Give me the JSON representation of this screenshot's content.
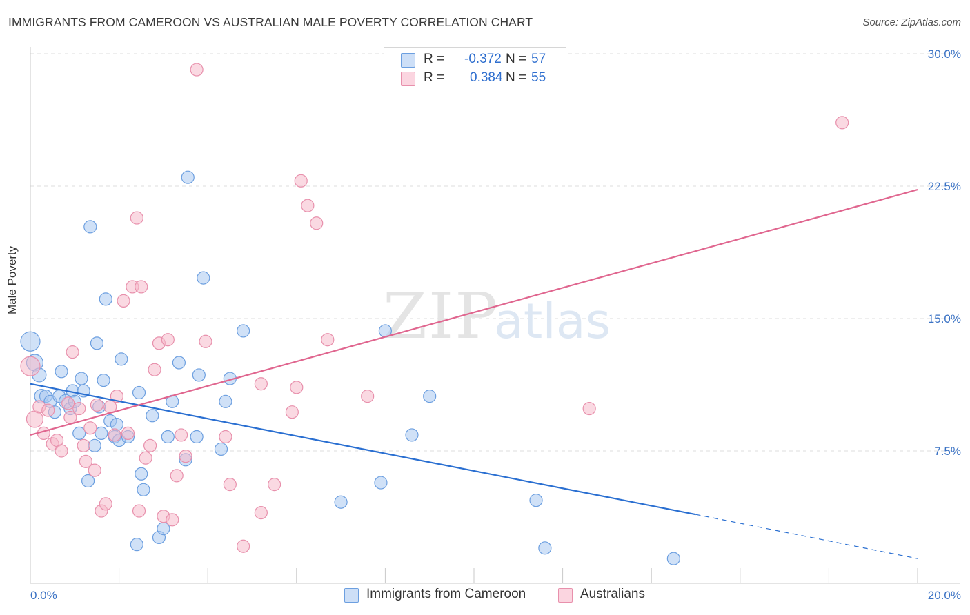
{
  "header": {
    "title": "IMMIGRANTS FROM CAMEROON VS AUSTRALIAN MALE POVERTY CORRELATION CHART",
    "source": "Source: ZipAtlas.com"
  },
  "watermark": {
    "zip": "ZIP",
    "atlas": "atlas"
  },
  "legend": {
    "r_label": "R =",
    "n_label": "N =",
    "rows": [
      {
        "r": "-0.372",
        "n": "57",
        "color": "#a9c8f0"
      },
      {
        "r": "0.384",
        "n": "55",
        "color": "#f5b9cb"
      }
    ]
  },
  "colors": {
    "blue_fill": "#a9c8f0",
    "blue_stroke": "#6c9fe0",
    "blue_line": "#2a6fd1",
    "pink_fill": "#f5b9cb",
    "pink_stroke": "#e890ac",
    "pink_line": "#e0668f",
    "tick_text": "#3a72c4",
    "grid": "#dddddd"
  },
  "chart_data": {
    "type": "scatter",
    "title": "IMMIGRANTS FROM CAMEROON VS AUSTRALIAN MALE POVERTY CORRELATION CHART",
    "xlabel": "",
    "ylabel": "Male Poverty",
    "xlim": [
      0,
      20
    ],
    "ylim": [
      0,
      30
    ],
    "x_tick_labels": [
      "0.0%",
      "20.0%"
    ],
    "y_ticks": [
      7.5,
      15.0,
      22.5,
      30.0
    ],
    "y_tick_labels": [
      "7.5%",
      "15.0%",
      "22.5%",
      "30.0%"
    ],
    "grid": true,
    "legend_position": "top-center",
    "series": [
      {
        "name": "Immigrants from Cameroon",
        "color": "#a9c8f0",
        "r": -0.372,
        "n": 57,
        "trend": {
          "x0": 0.0,
          "y0": 11.3,
          "x1": 15.0,
          "y1": 3.9,
          "dashed_to_x": 20.0,
          "dashed_to_y": 1.4
        },
        "points": [
          [
            0.0,
            13.7,
            14
          ],
          [
            0.1,
            12.5,
            12
          ],
          [
            0.2,
            11.8,
            10
          ],
          [
            0.25,
            10.6,
            10
          ],
          [
            0.35,
            10.6,
            9
          ],
          [
            0.45,
            10.3,
            9
          ],
          [
            0.55,
            9.7,
            9
          ],
          [
            0.65,
            10.6,
            9
          ],
          [
            0.7,
            12.0,
            9
          ],
          [
            0.8,
            10.3,
            10
          ],
          [
            0.9,
            9.9,
            9
          ],
          [
            0.95,
            10.9,
            9
          ],
          [
            1.0,
            10.3,
            9
          ],
          [
            1.1,
            8.5,
            9
          ],
          [
            1.15,
            11.6,
            9
          ],
          [
            1.2,
            10.9,
            9
          ],
          [
            1.3,
            5.8,
            9
          ],
          [
            1.35,
            20.2,
            9
          ],
          [
            1.45,
            7.8,
            9
          ],
          [
            1.5,
            13.6,
            9
          ],
          [
            1.55,
            10.0,
            9
          ],
          [
            1.65,
            11.5,
            9
          ],
          [
            1.7,
            16.1,
            9
          ],
          [
            1.8,
            9.2,
            9
          ],
          [
            1.9,
            8.3,
            9
          ],
          [
            1.95,
            9.0,
            9
          ],
          [
            2.0,
            8.1,
            9
          ],
          [
            2.05,
            12.7,
            9
          ],
          [
            2.2,
            8.3,
            9
          ],
          [
            2.4,
            2.2,
            9
          ],
          [
            2.45,
            10.8,
            9
          ],
          [
            2.5,
            6.2,
            9
          ],
          [
            2.55,
            5.3,
            9
          ],
          [
            2.75,
            9.5,
            9
          ],
          [
            2.9,
            2.6,
            9
          ],
          [
            3.0,
            3.1,
            9
          ],
          [
            3.2,
            10.3,
            9
          ],
          [
            3.35,
            12.5,
            9
          ],
          [
            3.5,
            7.0,
            9
          ],
          [
            3.55,
            23.0,
            9
          ],
          [
            3.75,
            8.3,
            9
          ],
          [
            3.8,
            11.8,
            9
          ],
          [
            3.9,
            17.3,
            9
          ],
          [
            4.3,
            7.6,
            9
          ],
          [
            4.5,
            11.6,
            9
          ],
          [
            4.8,
            14.3,
            9
          ],
          [
            7.0,
            4.6,
            9
          ],
          [
            7.9,
            5.7,
            9
          ],
          [
            8.0,
            14.3,
            9
          ],
          [
            8.6,
            8.4,
            9
          ],
          [
            9.0,
            10.6,
            9
          ],
          [
            11.4,
            4.7,
            9
          ],
          [
            11.6,
            2.0,
            9
          ],
          [
            14.5,
            1.4,
            9
          ],
          [
            3.1,
            8.3,
            9
          ],
          [
            4.4,
            10.3,
            9
          ],
          [
            1.6,
            8.5,
            9
          ]
        ]
      },
      {
        "name": "Australians",
        "color": "#f5b9cb",
        "r": 0.384,
        "n": 55,
        "trend": {
          "x0": 0.0,
          "y0": 8.4,
          "x1": 20.0,
          "y1": 22.3
        },
        "points": [
          [
            0.0,
            12.3,
            14
          ],
          [
            0.1,
            9.3,
            12
          ],
          [
            0.2,
            10.0,
            9
          ],
          [
            0.3,
            8.5,
            9
          ],
          [
            0.4,
            9.8,
            9
          ],
          [
            0.5,
            7.9,
            9
          ],
          [
            0.6,
            8.1,
            9
          ],
          [
            0.7,
            7.5,
            9
          ],
          [
            0.85,
            10.2,
            9
          ],
          [
            0.9,
            9.4,
            9
          ],
          [
            0.95,
            13.1,
            9
          ],
          [
            1.1,
            9.9,
            9
          ],
          [
            1.2,
            7.8,
            9
          ],
          [
            1.25,
            6.9,
            9
          ],
          [
            1.35,
            8.8,
            9
          ],
          [
            1.45,
            6.4,
            9
          ],
          [
            1.5,
            10.1,
            9
          ],
          [
            1.6,
            4.1,
            9
          ],
          [
            1.7,
            4.5,
            9
          ],
          [
            1.8,
            10.0,
            9
          ],
          [
            1.9,
            8.4,
            9
          ],
          [
            1.95,
            10.6,
            9
          ],
          [
            2.1,
            16.0,
            9
          ],
          [
            2.2,
            8.5,
            9
          ],
          [
            2.3,
            16.8,
            9
          ],
          [
            2.4,
            20.7,
            9
          ],
          [
            2.45,
            4.1,
            9
          ],
          [
            2.5,
            16.8,
            9
          ],
          [
            2.6,
            7.1,
            9
          ],
          [
            2.7,
            7.8,
            9
          ],
          [
            2.8,
            12.1,
            9
          ],
          [
            2.9,
            13.6,
            9
          ],
          [
            3.0,
            3.8,
            9
          ],
          [
            3.1,
            13.8,
            9
          ],
          [
            3.2,
            3.6,
            9
          ],
          [
            3.3,
            6.1,
            9
          ],
          [
            3.4,
            8.4,
            9
          ],
          [
            3.5,
            7.2,
            9
          ],
          [
            3.75,
            29.1,
            9
          ],
          [
            3.95,
            13.7,
            9
          ],
          [
            4.4,
            8.3,
            9
          ],
          [
            4.5,
            5.6,
            9
          ],
          [
            4.8,
            2.1,
            9
          ],
          [
            5.2,
            11.3,
            9
          ],
          [
            5.2,
            4.0,
            9
          ],
          [
            5.5,
            5.6,
            9
          ],
          [
            5.9,
            9.7,
            9
          ],
          [
            6.0,
            11.1,
            9
          ],
          [
            6.1,
            22.8,
            9
          ],
          [
            6.25,
            21.4,
            9
          ],
          [
            6.45,
            20.4,
            9
          ],
          [
            6.7,
            13.8,
            9
          ],
          [
            7.6,
            10.6,
            9
          ],
          [
            12.6,
            9.9,
            9
          ],
          [
            18.3,
            26.1,
            9
          ]
        ]
      }
    ]
  }
}
